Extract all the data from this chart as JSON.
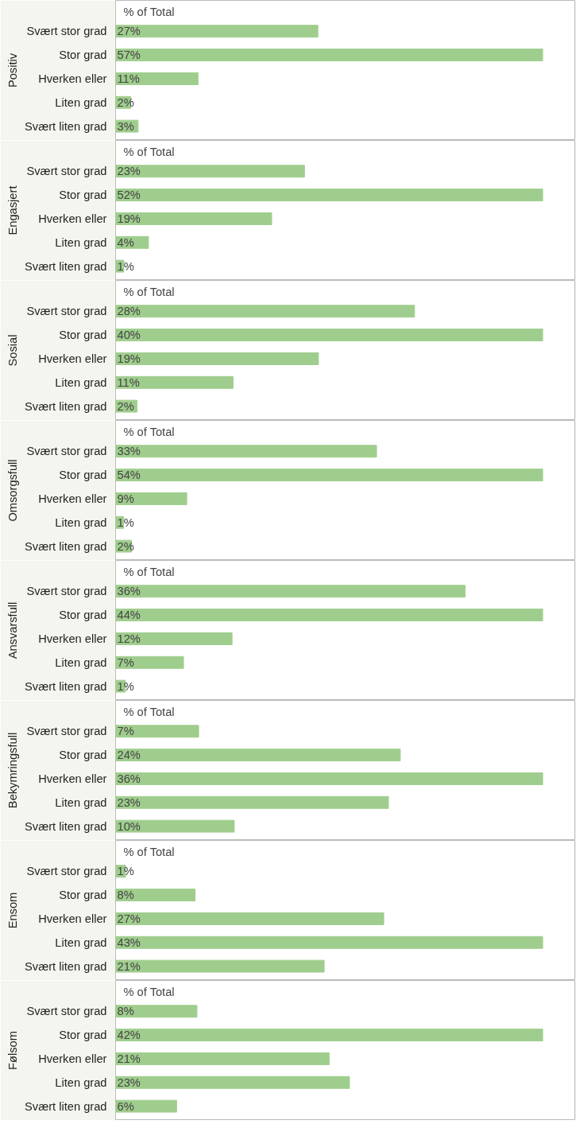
{
  "chart_data": [
    {
      "type": "bar",
      "orientation": "horizontal",
      "title": "Positiv",
      "xlabel": "% of Total",
      "categories": [
        "Svært stor grad",
        "Stor grad",
        "Hverken eller",
        "Liten grad",
        "Svært liten grad"
      ],
      "values": [
        27,
        57,
        11,
        2,
        3
      ],
      "value_labels": [
        "27%",
        "57%",
        "11%",
        "2%",
        "3%"
      ],
      "color": "#9fcd8d",
      "tick_labels": "y"
    },
    {
      "type": "bar",
      "orientation": "horizontal",
      "title": "Engasjert",
      "xlabel": "% of Total",
      "categories": [
        "Svært stor grad",
        "Stor grad",
        "Hverken eller",
        "Liten grad",
        "Svært liten grad"
      ],
      "values": [
        23,
        52,
        19,
        4,
        1
      ],
      "value_labels": [
        "23%",
        "52%",
        "19%",
        "4%",
        "1%"
      ],
      "color": "#9fcd8d",
      "tick_labels": "y"
    },
    {
      "type": "bar",
      "orientation": "horizontal",
      "title": "Sosial",
      "xlabel": "% of Total",
      "categories": [
        "Svært stor grad",
        "Stor grad",
        "Hverken eller",
        "Liten grad",
        "Svært liten grad"
      ],
      "values": [
        28,
        40,
        19,
        11,
        2
      ],
      "value_labels": [
        "28%",
        "40%",
        "19%",
        "11%",
        "2%"
      ],
      "color": "#9fcd8d",
      "tick_labels": "y"
    },
    {
      "type": "bar",
      "orientation": "horizontal",
      "title": "Omsorgsfull",
      "xlabel": "% of Total",
      "categories": [
        "Svært stor grad",
        "Stor grad",
        "Hverken eller",
        "Liten grad",
        "Svært liten grad"
      ],
      "values": [
        33,
        54,
        9,
        1,
        2
      ],
      "value_labels": [
        "33%",
        "54%",
        "9%",
        "1%",
        "2%"
      ],
      "color": "#9fcd8d",
      "tick_labels": "y"
    },
    {
      "type": "bar",
      "orientation": "horizontal",
      "title": "Ansvarsfull",
      "xlabel": "% of Total",
      "categories": [
        "Svært stor grad",
        "Stor grad",
        "Hverken eller",
        "Liten grad",
        "Svært liten grad"
      ],
      "values": [
        36,
        44,
        12,
        7,
        1
      ],
      "value_labels": [
        "36%",
        "44%",
        "12%",
        "7%",
        "1%"
      ],
      "color": "#9fcd8d",
      "tick_labels": "y"
    },
    {
      "type": "bar",
      "orientation": "horizontal",
      "title": "Bekymringsfull",
      "xlabel": "% of Total",
      "categories": [
        "Svært stor grad",
        "Stor grad",
        "Hverken eller",
        "Liten grad",
        "Svært liten grad"
      ],
      "values": [
        7,
        24,
        36,
        23,
        10
      ],
      "value_labels": [
        "7%",
        "24%",
        "36%",
        "23%",
        "10%"
      ],
      "color": "#9fcd8d",
      "tick_labels": "y"
    },
    {
      "type": "bar",
      "orientation": "horizontal",
      "title": "Ensom",
      "xlabel": "% of Total",
      "categories": [
        "Svært stor grad",
        "Stor grad",
        "Hverken eller",
        "Liten grad",
        "Svært liten grad"
      ],
      "values": [
        1,
        8,
        27,
        43,
        21
      ],
      "value_labels": [
        "1%",
        "8%",
        "27%",
        "43%",
        "21%"
      ],
      "color": "#9fcd8d",
      "tick_labels": "y"
    },
    {
      "type": "bar",
      "orientation": "horizontal",
      "title": "Følsom",
      "xlabel": "% of Total",
      "categories": [
        "Svært stor grad",
        "Stor grad",
        "Hverken eller",
        "Liten grad",
        "Svært liten grad"
      ],
      "values": [
        8,
        42,
        21,
        23,
        6
      ],
      "value_labels": [
        "8%",
        "42%",
        "21%",
        "23%",
        "6%"
      ],
      "color": "#9fcd8d",
      "tick_labels": "y"
    }
  ]
}
